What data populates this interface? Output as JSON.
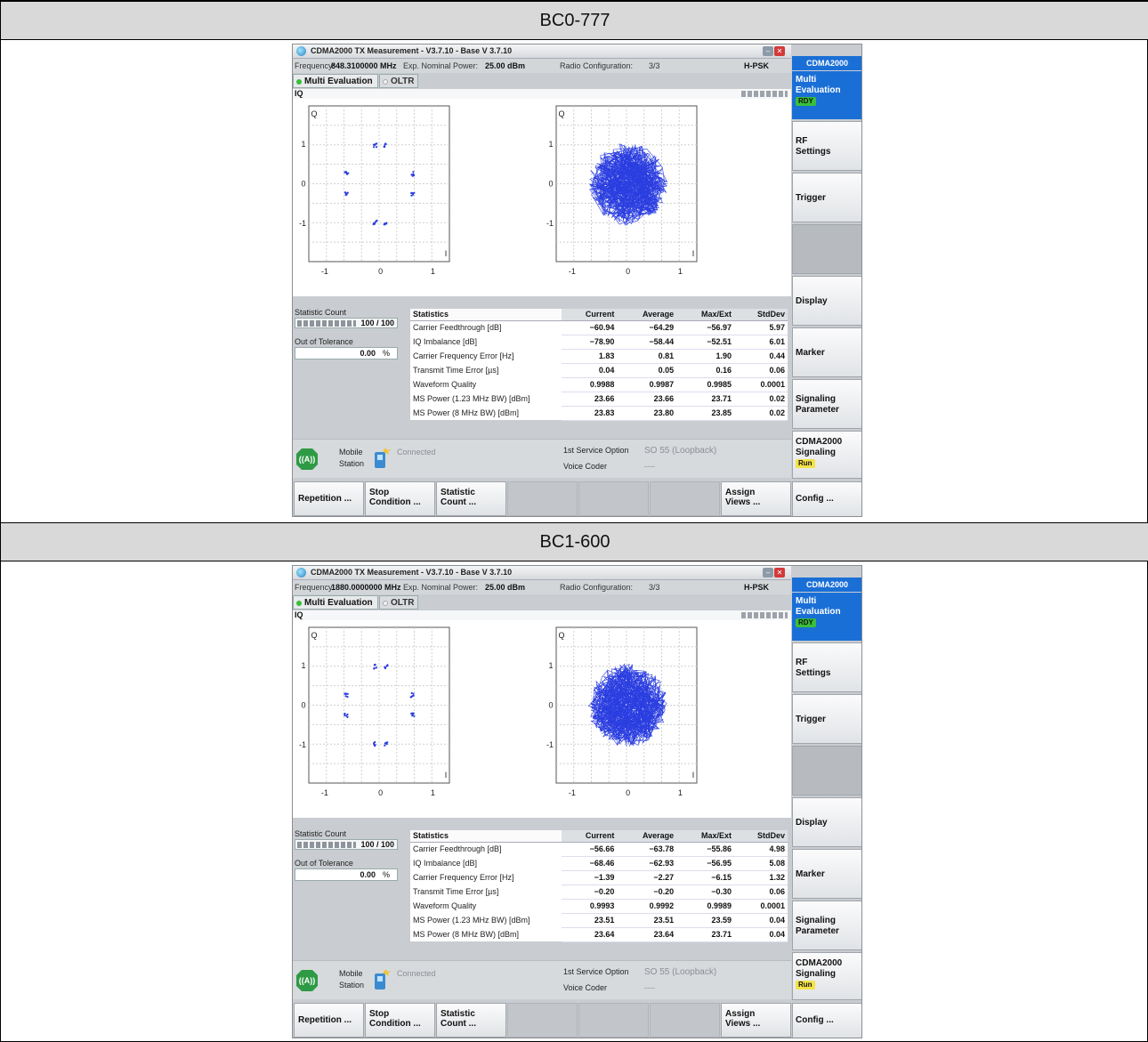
{
  "panels": [
    {
      "header": "BC0-777",
      "window_title": "CDMA2000 TX Measurement  - V3.7.10 - Base V 3.7.10",
      "info": {
        "freq_label": "Frequency:",
        "freq_value": "848.3100000 MHz",
        "power_label": "Exp. Nominal Power:",
        "power_value": "25.00 dBm",
        "rc_label": "Radio Configuration:",
        "rc_value": "3/3",
        "mod": "H-PSK"
      },
      "tabs": {
        "active": "Multi Evaluation",
        "inactive": "OLTR"
      },
      "iq_label": "IQ",
      "plot_labels": {
        "q": "Q",
        "i": "I",
        "t1": "1",
        "t0": "0",
        "tm1": "-1"
      },
      "statistic_count_label": "Statistic Count",
      "statistic_count_value": "100 / 100",
      "out_of_tolerance_label": "Out of Tolerance",
      "out_of_tolerance_value": "0.00",
      "out_of_tolerance_unit": "%",
      "table": {
        "headers": [
          "Statistics",
          "Current",
          "Average",
          "Max/Ext",
          "StdDev"
        ],
        "rows": [
          [
            "Carrier Feedthrough [dB]",
            "−60.94",
            "−64.29",
            "−56.97",
            "5.97"
          ],
          [
            "IQ Imbalance [dB]",
            "−78.90",
            "−58.44",
            "−52.51",
            "6.01"
          ],
          [
            "Carrier Frequency Error [Hz]",
            "1.83",
            "0.81",
            "1.90",
            "0.44"
          ],
          [
            "Transmit Time Error [µs]",
            "0.04",
            "0.05",
            "0.16",
            "0.06"
          ],
          [
            "Waveform Quality",
            "0.9988",
            "0.9987",
            "0.9985",
            "0.0001"
          ],
          [
            "MS Power (1.23 MHz BW) [dBm]",
            "23.66",
            "23.66",
            "23.71",
            "0.02"
          ],
          [
            "MS Power (8 MHz BW) [dBm]",
            "23.83",
            "23.80",
            "23.85",
            "0.02"
          ]
        ]
      },
      "connection": {
        "mobile": "Mobile",
        "station": "Station",
        "status": "Connected",
        "so_label": "1st Service Option",
        "so_value": "SO 55 (Loopback)",
        "voice_label": "Voice Coder",
        "voice_value": "----"
      },
      "softkeys": [
        [
          "Repetition ...",
          ""
        ],
        [
          "Stop",
          "Condition ..."
        ],
        [
          "Statistic",
          "Count ..."
        ],
        [
          "",
          ""
        ],
        [
          "",
          ""
        ],
        [
          "",
          ""
        ],
        [
          "Assign",
          "Views ..."
        ]
      ],
      "right": {
        "head": "CDMA2000",
        "multi1": "Multi",
        "multi2": "Evaluation",
        "rdy": "RDY",
        "rf1": "RF",
        "rf2": "Settings",
        "trigger": "Trigger",
        "display": "Display",
        "marker": "Marker",
        "sig1": "Signaling",
        "sig2": "Parameter",
        "cs1": "CDMA2000",
        "cs2": "Signaling",
        "run": "Run",
        "config": "Config ..."
      }
    },
    {
      "header": "BC1-600",
      "window_title": "CDMA2000 TX Measurement  - V3.7.10 - Base V 3.7.10",
      "info": {
        "freq_label": "Frequency:",
        "freq_value": "1880.0000000 MHz",
        "power_label": "Exp. Nominal Power:",
        "power_value": "25.00 dBm",
        "rc_label": "Radio Configuration:",
        "rc_value": "3/3",
        "mod": "H-PSK"
      },
      "tabs": {
        "active": "Multi Evaluation",
        "inactive": "OLTR"
      },
      "iq_label": "IQ",
      "plot_labels": {
        "q": "Q",
        "i": "I",
        "t1": "1",
        "t0": "0",
        "tm1": "-1"
      },
      "statistic_count_label": "Statistic Count",
      "statistic_count_value": "100 / 100",
      "out_of_tolerance_label": "Out of Tolerance",
      "out_of_tolerance_value": "0.00",
      "out_of_tolerance_unit": "%",
      "table": {
        "headers": [
          "Statistics",
          "Current",
          "Average",
          "Max/Ext",
          "StdDev"
        ],
        "rows": [
          [
            "Carrier Feedthrough [dB]",
            "−56.66",
            "−63.78",
            "−55.86",
            "4.98"
          ],
          [
            "IQ Imbalance [dB]",
            "−68.46",
            "−62.93",
            "−56.95",
            "5.08"
          ],
          [
            "Carrier Frequency Error [Hz]",
            "−1.39",
            "−2.27",
            "−6.15",
            "1.32"
          ],
          [
            "Transmit Time Error [µs]",
            "−0.20",
            "−0.20",
            "−0.30",
            "0.06"
          ],
          [
            "Waveform Quality",
            "0.9993",
            "0.9992",
            "0.9989",
            "0.0001"
          ],
          [
            "MS Power (1.23 MHz BW) [dBm]",
            "23.51",
            "23.51",
            "23.59",
            "0.04"
          ],
          [
            "MS Power (8 MHz BW) [dBm]",
            "23.64",
            "23.64",
            "23.71",
            "0.04"
          ]
        ]
      },
      "connection": {
        "mobile": "Mobile",
        "station": "Station",
        "status": "Connected",
        "so_label": "1st Service Option",
        "so_value": "SO 55 (Loopback)",
        "voice_label": "Voice Coder",
        "voice_value": "----"
      },
      "softkeys": [
        [
          "Repetition ...",
          ""
        ],
        [
          "Stop",
          "Condition ..."
        ],
        [
          "Statistic",
          "Count ..."
        ],
        [
          "",
          ""
        ],
        [
          "",
          ""
        ],
        [
          "",
          ""
        ],
        [
          "Assign",
          "Views ..."
        ]
      ],
      "right": {
        "head": "CDMA2000",
        "multi1": "Multi",
        "multi2": "Evaluation",
        "rdy": "RDY",
        "rf1": "RF",
        "rf2": "Settings",
        "trigger": "Trigger",
        "display": "Display",
        "marker": "Marker",
        "sig1": "Signaling",
        "sig2": "Parameter",
        "cs1": "CDMA2000",
        "cs2": "Signaling",
        "run": "Run",
        "config": "Config ..."
      }
    }
  ],
  "colors": {
    "accent": "#1a6fd6",
    "trace": "#2a3de0",
    "ready": "#39c039",
    "run": "#f3e34a"
  },
  "icons": [
    "app-logo-icon",
    "minimize-icon",
    "close-icon",
    "mobile-station-icon",
    "phone-icon",
    "connection-spark-icon"
  ]
}
